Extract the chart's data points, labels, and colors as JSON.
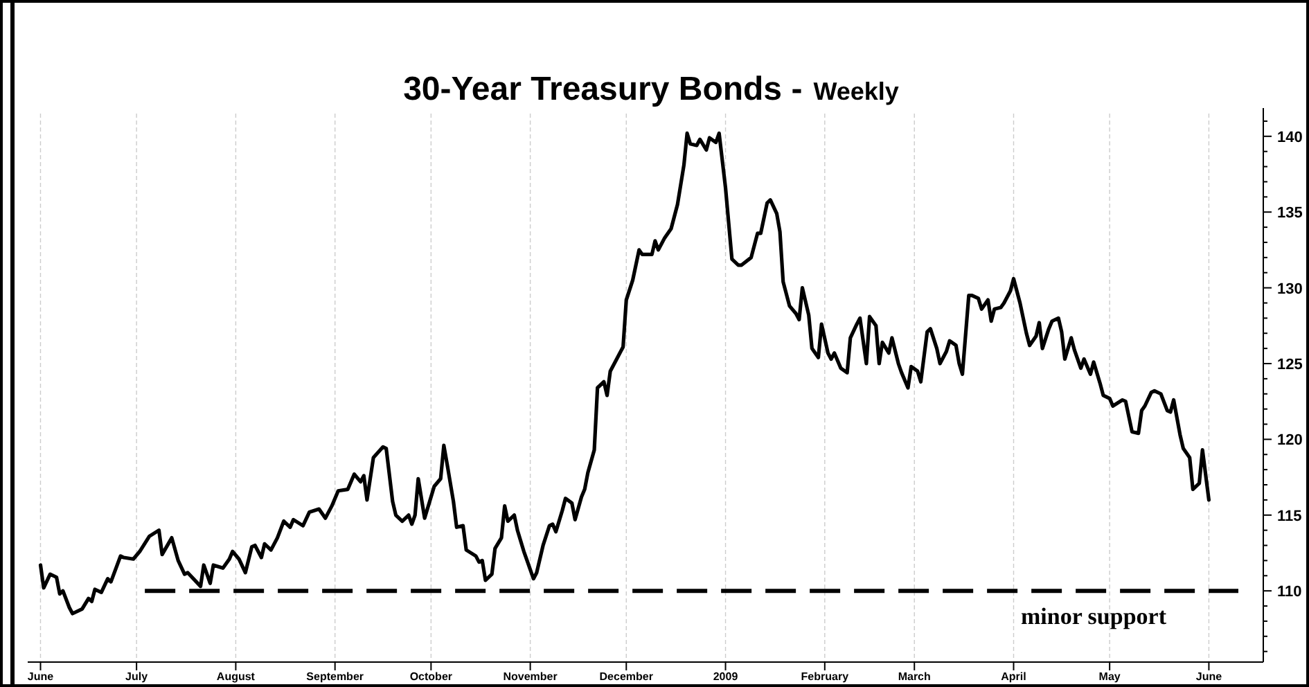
{
  "chart_data": {
    "type": "line",
    "title": "30-Year Treasury Bonds -",
    "subtitle": "Weekly",
    "x": [
      "2008-06-01",
      "2008-06-02",
      "2008-06-04",
      "2008-06-06",
      "2008-06-07",
      "2008-06-08",
      "2008-06-10",
      "2008-06-11",
      "2008-06-14",
      "2008-06-16",
      "2008-06-17",
      "2008-06-18",
      "2008-06-20",
      "2008-06-22",
      "2008-06-23",
      "2008-06-26",
      "2008-06-27",
      "2008-06-30",
      "2008-07-02",
      "2008-07-05",
      "2008-07-08",
      "2008-07-09",
      "2008-07-12",
      "2008-07-14",
      "2008-07-16",
      "2008-07-17",
      "2008-07-21",
      "2008-07-22",
      "2008-07-24",
      "2008-07-25",
      "2008-07-28",
      "2008-07-30",
      "2008-07-31",
      "2008-08-02",
      "2008-08-04",
      "2008-08-06",
      "2008-08-07",
      "2008-08-09",
      "2008-08-10",
      "2008-08-12",
      "2008-08-14",
      "2008-08-16",
      "2008-08-18",
      "2008-08-19",
      "2008-08-22",
      "2008-08-24",
      "2008-08-27",
      "2008-08-29",
      "2008-08-31",
      "2008-09-02",
      "2008-09-05",
      "2008-09-07",
      "2008-09-09",
      "2008-09-10",
      "2008-09-11",
      "2008-09-13",
      "2008-09-16",
      "2008-09-17",
      "2008-09-19",
      "2008-09-20",
      "2008-09-22",
      "2008-09-24",
      "2008-09-25",
      "2008-09-26",
      "2008-09-27",
      "2008-09-29",
      "2008-10-02",
      "2008-10-04",
      "2008-10-05",
      "2008-10-06",
      "2008-10-08",
      "2008-10-09",
      "2008-10-11",
      "2008-10-12",
      "2008-10-15",
      "2008-10-16",
      "2008-10-17",
      "2008-10-18",
      "2008-10-20",
      "2008-10-21",
      "2008-10-23",
      "2008-10-24",
      "2008-10-25",
      "2008-10-27",
      "2008-10-28",
      "2008-10-30",
      "2008-10-31",
      "2008-11-02",
      "2008-11-03",
      "2008-11-05",
      "2008-11-07",
      "2008-11-08",
      "2008-11-09",
      "2008-11-11",
      "2008-11-12",
      "2008-11-14",
      "2008-11-15",
      "2008-11-17",
      "2008-11-18",
      "2008-11-19",
      "2008-11-21",
      "2008-11-22",
      "2008-11-24",
      "2008-11-25",
      "2008-11-26",
      "2008-11-28",
      "2008-11-30",
      "2008-12-01",
      "2008-12-03",
      "2008-12-05",
      "2008-12-06",
      "2008-12-09",
      "2008-12-10",
      "2008-12-11",
      "2008-12-13",
      "2008-12-15",
      "2008-12-17",
      "2008-12-19",
      "2008-12-20",
      "2008-12-21",
      "2008-12-23",
      "2008-12-24",
      "2008-12-26",
      "2008-12-27",
      "2008-12-29",
      "2008-12-30",
      "2009-01-01",
      "2009-01-03",
      "2009-01-05",
      "2009-01-06",
      "2009-01-09",
      "2009-01-11",
      "2009-01-12",
      "2009-01-14",
      "2009-01-15",
      "2009-01-17",
      "2009-01-18",
      "2009-01-19",
      "2009-01-21",
      "2009-01-23",
      "2009-01-24",
      "2009-01-25",
      "2009-01-27",
      "2009-01-28",
      "2009-01-30",
      "2009-01-31",
      "2009-02-02",
      "2009-02-03",
      "2009-02-04",
      "2009-02-06",
      "2009-02-08",
      "2009-02-09",
      "2009-02-11",
      "2009-02-12",
      "2009-02-14",
      "2009-02-15",
      "2009-02-17",
      "2009-02-18",
      "2009-02-19",
      "2009-02-21",
      "2009-02-22",
      "2009-02-24",
      "2009-02-25",
      "2009-02-27",
      "2009-02-28",
      "2009-03-02",
      "2009-03-03",
      "2009-03-05",
      "2009-03-06",
      "2009-03-08",
      "2009-03-09",
      "2009-03-11",
      "2009-03-12",
      "2009-03-14",
      "2009-03-15",
      "2009-03-16",
      "2009-03-18",
      "2009-03-19",
      "2009-03-21",
      "2009-03-22",
      "2009-03-24",
      "2009-03-25",
      "2009-03-26",
      "2009-03-28",
      "2009-03-29",
      "2009-03-31",
      "2009-04-01",
      "2009-04-03",
      "2009-04-05",
      "2009-04-06",
      "2009-04-08",
      "2009-04-09",
      "2009-04-10",
      "2009-04-12",
      "2009-04-13",
      "2009-04-15",
      "2009-04-16",
      "2009-04-17",
      "2009-04-19",
      "2009-04-20",
      "2009-04-22",
      "2009-04-23",
      "2009-04-25",
      "2009-04-26",
      "2009-04-28",
      "2009-04-29",
      "2009-05-01",
      "2009-05-02",
      "2009-05-05",
      "2009-05-06",
      "2009-05-08",
      "2009-05-10",
      "2009-05-11",
      "2009-05-12",
      "2009-05-14",
      "2009-05-15",
      "2009-05-17",
      "2009-05-19",
      "2009-05-20",
      "2009-05-21",
      "2009-05-23",
      "2009-05-24",
      "2009-05-26",
      "2009-05-27",
      "2009-05-29",
      "2009-05-30",
      "2009-06-01"
    ],
    "series": [
      {
        "color": "#000000",
        "values": [
          111.7,
          110.2,
          111.1,
          110.9,
          109.8,
          110,
          108.9,
          108.5,
          108.8,
          109.5,
          109.3,
          110.1,
          109.9,
          110.8,
          110.6,
          112.3,
          112.2,
          112.1,
          112.6,
          113.6,
          114,
          112.4,
          113.5,
          112,
          111.1,
          111.2,
          110.3,
          111.7,
          110.5,
          111.7,
          111.5,
          112.1,
          112.6,
          112.1,
          111.2,
          112.9,
          113,
          112.2,
          113.1,
          112.7,
          113.5,
          114.6,
          114.2,
          114.7,
          114.3,
          115.2,
          115.4,
          114.8,
          115.6,
          116.6,
          116.7,
          117.7,
          117.2,
          117.6,
          116,
          118.8,
          119.5,
          119.4,
          115.9,
          115,
          114.6,
          115,
          114.4,
          115,
          117.4,
          114.8,
          116.9,
          117.4,
          119.6,
          118.4,
          115.9,
          114.2,
          114.3,
          112.7,
          112.3,
          111.9,
          112,
          110.7,
          111.1,
          112.8,
          113.5,
          115.6,
          114.6,
          115,
          114,
          112.6,
          112,
          110.8,
          111.2,
          113,
          114.3,
          114.4,
          113.9,
          115.3,
          116.1,
          115.8,
          114.7,
          116.2,
          116.7,
          117.8,
          119.3,
          123.4,
          123.8,
          122.9,
          124.5,
          125.3,
          126.1,
          129.2,
          130.5,
          132.5,
          132.2,
          132.2,
          133.1,
          132.5,
          133.3,
          133.9,
          135.5,
          138.1,
          140.2,
          139.5,
          139.4,
          139.8,
          139.1,
          139.9,
          139.6,
          140.2,
          136.6,
          131.9,
          131.5,
          131.5,
          132,
          133.6,
          133.6,
          135.6,
          135.8,
          134.9,
          133.7,
          130.4,
          128.8,
          128.3,
          127.9,
          130,
          128.2,
          126,
          125.4,
          127.6,
          125.7,
          125.3,
          125.7,
          124.7,
          124.4,
          126.7,
          127.6,
          128,
          125,
          128.1,
          127.5,
          125,
          126.4,
          125.7,
          126.7,
          125,
          124.4,
          123.4,
          124.8,
          124.5,
          123.8,
          127.1,
          127.3,
          126,
          125,
          125.8,
          126.5,
          126.2,
          125,
          124.3,
          129.5,
          129.5,
          129.3,
          128.6,
          129.2,
          127.8,
          128.6,
          128.7,
          129,
          129.8,
          130.6,
          129,
          127,
          126.2,
          126.8,
          127.7,
          126,
          127.3,
          127.8,
          128,
          127.1,
          125.3,
          126.7,
          125.9,
          124.7,
          125.3,
          124.3,
          125.1,
          123.7,
          122.9,
          122.7,
          122.2,
          122.6,
          122.5,
          120.5,
          120.4,
          121.9,
          122.2,
          123.1,
          123.2,
          123,
          121.9,
          121.8,
          122.6,
          120.3,
          119.4,
          118.8,
          116.7,
          117.1,
          119.3,
          116
        ]
      }
    ],
    "xlim": [
      "2008-05-28",
      "2009-06-18"
    ],
    "xticks": [
      {
        "value": "2008-06-01",
        "label": "June"
      },
      {
        "value": "2008-07-01",
        "label": "July"
      },
      {
        "value": "2008-08-01",
        "label": "August"
      },
      {
        "value": "2008-09-01",
        "label": "September"
      },
      {
        "value": "2008-10-01",
        "label": "October"
      },
      {
        "value": "2008-11-01",
        "label": "November"
      },
      {
        "value": "2008-12-01",
        "label": "December"
      },
      {
        "value": "2009-01-01",
        "label": "2009"
      },
      {
        "value": "2009-02-01",
        "label": "February"
      },
      {
        "value": "2009-03-01",
        "label": "March"
      },
      {
        "value": "2009-04-01",
        "label": "April"
      },
      {
        "value": "2009-05-01",
        "label": "May"
      },
      {
        "value": "2009-06-01",
        "label": "June"
      }
    ],
    "ylim": [
      105.3,
      141.5
    ],
    "yticks": [
      {
        "value": 106,
        "label": null
      },
      {
        "value": 107,
        "label": null
      },
      {
        "value": 108,
        "label": null
      },
      {
        "value": 109,
        "label": null
      },
      110,
      {
        "value": 111,
        "label": null
      },
      {
        "value": 112,
        "label": null
      },
      {
        "value": 113,
        "label": null
      },
      {
        "value": 114,
        "label": null
      },
      115,
      {
        "value": 116,
        "label": null
      },
      {
        "value": 117,
        "label": null
      },
      {
        "value": 118,
        "label": null
      },
      {
        "value": 119,
        "label": null
      },
      120,
      {
        "value": 121,
        "label": null
      },
      {
        "value": 122,
        "label": null
      },
      {
        "value": 123,
        "label": null
      },
      {
        "value": 124,
        "label": null
      },
      125,
      {
        "value": 126,
        "label": null
      },
      {
        "value": 127,
        "label": null
      },
      {
        "value": 128,
        "label": null
      },
      {
        "value": 129,
        "label": null
      },
      130,
      {
        "value": 131,
        "label": null
      },
      {
        "value": 132,
        "label": null
      },
      {
        "value": 133,
        "label": null
      },
      {
        "value": 134,
        "label": null
      },
      135,
      {
        "value": 136,
        "label": null
      },
      {
        "value": 137,
        "label": null
      },
      {
        "value": 138,
        "label": null
      },
      {
        "value": 139,
        "label": null
      },
      140,
      {
        "value": 141,
        "label": null
      }
    ],
    "grid": "x",
    "line_style": "solid",
    "marker": "none",
    "ref_lines": [
      {
        "axis": "y",
        "value": 110,
        "label": "minor support",
        "color": "#000000",
        "line_style": "dashed"
      }
    ]
  }
}
